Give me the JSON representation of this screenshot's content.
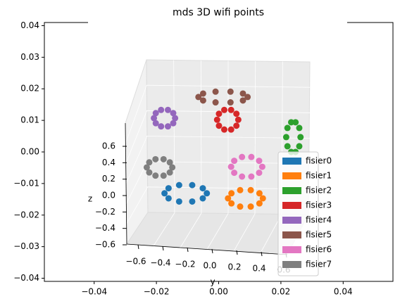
{
  "chart_data": [
    {
      "type": "scatter",
      "title": "mds 3D wifi points",
      "xlim": [
        -0.056,
        0.056
      ],
      "ylim": [
        -0.041,
        0.041
      ],
      "xticks": [
        {
          "value": -0.04,
          "label": "−0.04"
        },
        {
          "value": -0.02,
          "label": "−0.02"
        },
        {
          "value": 0,
          "label": "0.00"
        },
        0.02,
        0.04
      ],
      "yticks": [
        {
          "value": -0.04,
          "label": "−0.04"
        },
        {
          "value": -0.03,
          "label": "−0.03"
        },
        {
          "value": -0.02,
          "label": "−0.02"
        },
        {
          "value": -0.01,
          "label": "−0.01"
        },
        {
          "value": 0,
          "label": "0.00"
        },
        0.01,
        0.02,
        0.03,
        0.04
      ],
      "legend": "lower right",
      "series": [
        {
          "name": "fisier0",
          "color": "#1f77b4",
          "x": [
            -0.0038,
            -0.0051,
            -0.0085,
            -0.0127,
            -0.0161,
            -0.0174,
            -0.0161,
            -0.0127,
            -0.0085,
            -0.0051
          ],
          "values": [
            -0.0131,
            -0.0115,
            -0.0105,
            -0.0105,
            -0.0115,
            -0.0131,
            -0.0147,
            -0.0157,
            -0.0157,
            -0.0147
          ]
        },
        {
          "name": "fisier1",
          "color": "#ff7f0e",
          "x": [
            0.0142,
            0.0131,
            0.0103,
            0.0069,
            0.0041,
            0.003,
            0.0041,
            0.0069,
            0.0103,
            0.0131
          ],
          "values": [
            -0.0147,
            -0.0131,
            -0.0121,
            -0.0121,
            -0.0131,
            -0.0147,
            -0.0163,
            -0.0173,
            -0.0173,
            -0.0163
          ]
        },
        {
          "name": "fisier2",
          "color": "#2ca02c",
          "x": [
            0.0263,
            0.0259,
            0.0247,
            0.0233,
            0.0221,
            0.0217,
            0.0221,
            0.0233,
            0.0247,
            0.0259
          ],
          "values": [
            0.0047,
            0.0076,
            0.0094,
            0.0094,
            0.0076,
            0.0047,
            0.0018,
            0.0,
            0.0,
            0.0018
          ]
        },
        {
          "name": "fisier3",
          "color": "#d62728",
          "x": [
            0.0063,
            0.0057,
            0.004,
            0.0018,
            0.0001,
            -0.0005,
            0.0001,
            0.0018,
            0.004,
            0.0057
          ],
          "values": [
            0.0102,
            0.0121,
            0.0133,
            0.0133,
            0.0121,
            0.0102,
            0.0083,
            0.0071,
            0.0071,
            0.0083
          ]
        },
        {
          "name": "fisier4",
          "color": "#9467bd",
          "x": [
            -0.014,
            -0.0146,
            -0.0163,
            -0.0185,
            -0.0202,
            -0.0208,
            -0.0202,
            -0.0185,
            -0.0163,
            -0.0146
          ],
          "values": [
            0.0107,
            0.0123,
            0.0133,
            0.0133,
            0.0123,
            0.0107,
            0.0091,
            0.0081,
            0.0081,
            0.0091
          ]
        },
        {
          "name": "fisier5",
          "color": "#8c564b",
          "x": [
            0.0093,
            0.0078,
            0.0038,
            -0.001,
            -0.005,
            -0.0065,
            -0.005,
            -0.001,
            0.0038,
            0.0078
          ],
          "values": [
            0.0174,
            0.0185,
            0.0191,
            0.0191,
            0.0185,
            0.0174,
            0.0163,
            0.0157,
            0.0157,
            0.0163
          ]
        },
        {
          "name": "fisier6",
          "color": "#e377c2",
          "x": [
            0.014,
            0.013,
            0.0105,
            0.0075,
            0.005,
            0.004,
            0.005,
            0.0075,
            0.0105,
            0.013
          ],
          "values": [
            -0.0047,
            -0.0028,
            -0.0016,
            -0.0016,
            -0.0028,
            -0.0047,
            -0.0066,
            -0.0078,
            -0.0078,
            -0.0066
          ]
        },
        {
          "name": "fisier7",
          "color": "#7f7f7f",
          "x": [
            -0.0149,
            -0.0157,
            -0.0177,
            -0.0203,
            -0.0223,
            -0.0231,
            -0.0223,
            -0.0203,
            -0.0177,
            -0.0157
          ],
          "values": [
            -0.0049,
            -0.0033,
            -0.0023,
            -0.0023,
            -0.0033,
            -0.0049,
            -0.0065,
            -0.0075,
            -0.0075,
            -0.0065
          ]
        }
      ]
    },
    {
      "type": "axes3d",
      "zlabel": "z",
      "ylabel": "y",
      "zlim": [
        -0.6,
        0.6
      ],
      "zticks": [
        {
          "value": -0.6,
          "label": "−0.6"
        },
        {
          "value": -0.4,
          "label": "−0.4"
        },
        {
          "value": -0.2,
          "label": "−0.2"
        },
        {
          "value": 0,
          "label": "0.0"
        },
        0.2,
        0.4,
        0.6
      ],
      "ylim": [
        -0.6,
        0.6
      ],
      "yticks": [
        {
          "value": -0.6,
          "label": "−0.6"
        },
        {
          "value": -0.4,
          "label": "−0.4"
        },
        {
          "value": -0.2,
          "label": "−0.2"
        },
        {
          "value": 0,
          "label": "0.0"
        },
        0.2,
        0.4,
        0.6
      ]
    }
  ]
}
